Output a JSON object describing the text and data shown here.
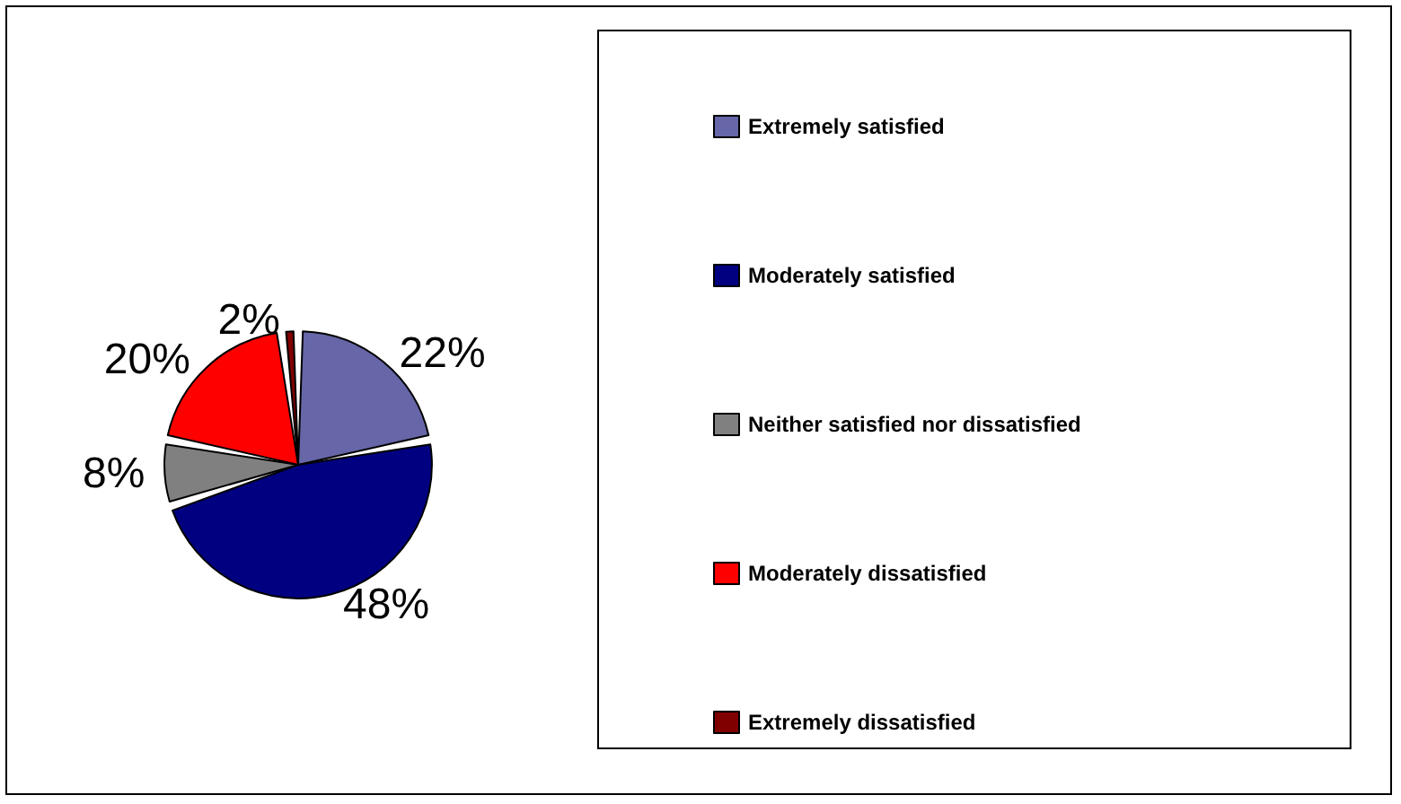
{
  "chart_data": {
    "type": "pie",
    "categories": [
      "Extremely satisfied",
      "Moderately satisfied",
      "Neither satisfied nor dissatisfied",
      "Moderately dissatisfied",
      "Extremely dissatisfied"
    ],
    "values": [
      22,
      48,
      8,
      20,
      2
    ],
    "value_labels": [
      "22%",
      "48%",
      "8%",
      "20%",
      "2%"
    ],
    "colors": [
      "#6666a8",
      "#000080",
      "#808080",
      "#ff0000",
      "#800000"
    ],
    "legend": "right"
  }
}
